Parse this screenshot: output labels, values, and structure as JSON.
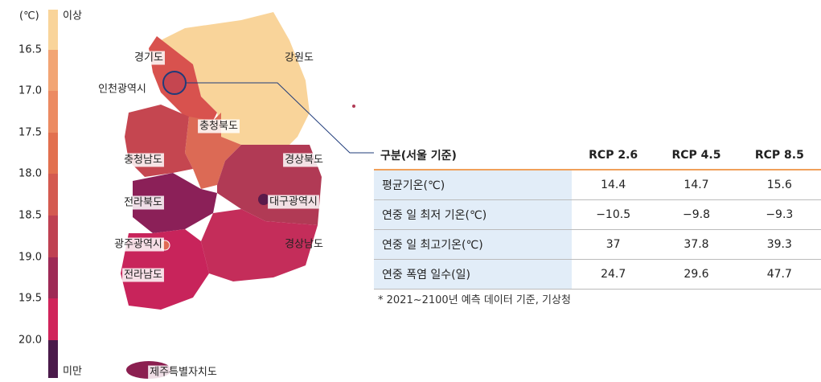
{
  "legend": {
    "unit": "(℃)",
    "top_label": "이상",
    "bottom_label": "미만",
    "ticks": [
      "16.5",
      "17.0",
      "17.5",
      "18.0",
      "18.5",
      "19.0",
      "19.5",
      "20.0"
    ]
  },
  "map": {
    "regions": [
      "경기도",
      "강원도",
      "인천광역시",
      "충청북도",
      "충청남도",
      "경상북도",
      "대구광역시",
      "전라북도",
      "광주광역시",
      "경상남도",
      "전라남도",
      "제주특별자치도"
    ]
  },
  "table": {
    "header": [
      "구분(서울 기준)",
      "RCP 2.6",
      "RCP 4.5",
      "RCP 8.5"
    ],
    "rows": [
      [
        "평균기온(℃)",
        "14.4",
        "14.7",
        "15.6"
      ],
      [
        "연중 일 최저 기온(℃)",
        "−10.5",
        "−9.8",
        "−9.3"
      ],
      [
        "연중 일 최고기온(℃)",
        "37",
        "37.8",
        "39.3"
      ],
      [
        "연중 폭염 일수(일)",
        "24.7",
        "29.6",
        "47.7"
      ]
    ]
  },
  "footnote": "* 2021~2100년 예측 데이터 기준, 기상청"
}
